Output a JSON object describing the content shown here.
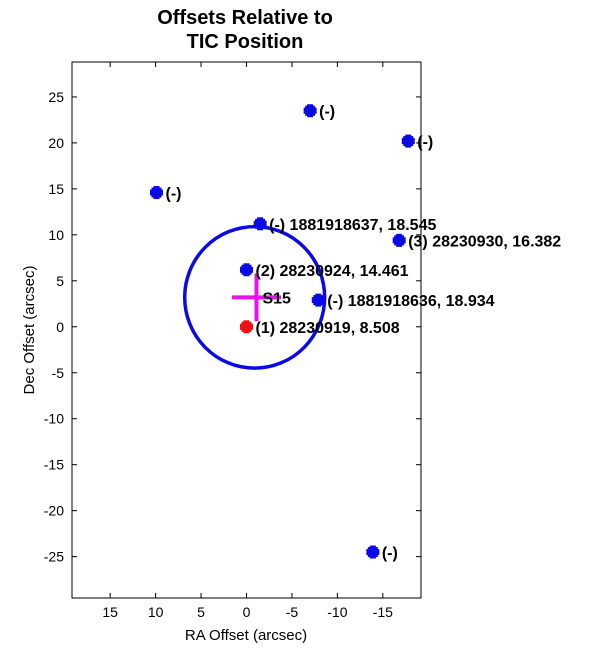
{
  "chart_data": {
    "type": "scatter",
    "title_lines": [
      "Offsets Relative to",
      "TIC Position"
    ],
    "xlabel": "RA Offset (arcsec)",
    "ylabel": "Dec Offset (arcsec)",
    "xlim": [
      19.2,
      -19.2
    ],
    "ylim": [
      -29.5,
      28.8
    ],
    "x_reversed": true,
    "xticks": [
      15,
      10,
      5,
      0,
      -5,
      -10,
      -15
    ],
    "yticks": [
      25,
      20,
      15,
      10,
      5,
      0,
      -5,
      -10,
      -15,
      -20,
      -25
    ],
    "grid": false,
    "colors": {
      "neighbor": "#0a0ae6",
      "target": "#ee1111",
      "circle": "#0a0ae6",
      "tic_cross": "#ee11ee",
      "frame": "#000000"
    },
    "points": [
      {
        "x": 0.0,
        "y": 0.0,
        "label": "(1) 28230919, 8.508",
        "color": "#ee1111"
      },
      {
        "x": 0.0,
        "y": 6.2,
        "label": "(2) 28230924, 14.461",
        "color": "#0a0ae6"
      },
      {
        "x": -16.8,
        "y": 9.4,
        "label": "(3) 28230930, 16.382",
        "color": "#0a0ae6"
      },
      {
        "x": -1.5,
        "y": 11.2,
        "label": "(-) 1881918637, 18.545",
        "color": "#0a0ae6"
      },
      {
        "x": -7.9,
        "y": 2.9,
        "label": "(-) 1881918636, 18.934",
        "color": "#0a0ae6"
      },
      {
        "x": 9.9,
        "y": 14.6,
        "label": "(-)",
        "color": "#0a0ae6"
      },
      {
        "x": -7.0,
        "y": 23.5,
        "label": "(-)",
        "color": "#0a0ae6"
      },
      {
        "x": -17.8,
        "y": 20.2,
        "label": "(-)",
        "color": "#0a0ae6"
      },
      {
        "x": -13.9,
        "y": -24.5,
        "label": "(-)",
        "color": "#0a0ae6"
      }
    ],
    "circle": {
      "cx": -0.9,
      "cy": 3.2,
      "r": 7.7
    },
    "tic_position": {
      "x": -1.1,
      "y": 3.2,
      "label": "S15",
      "half_width_x": 2.7,
      "half_height_y": 2.6
    }
  }
}
